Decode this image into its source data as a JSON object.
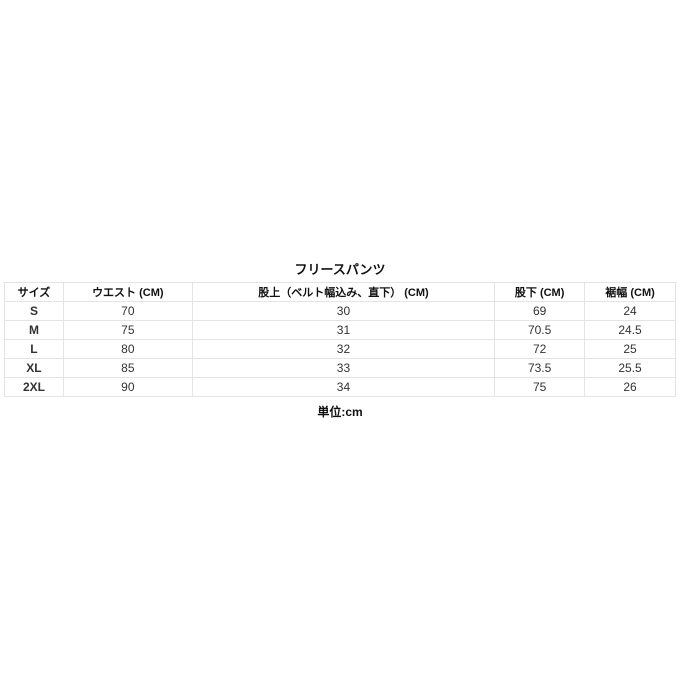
{
  "title": "フリースパンツ",
  "headers": [
    "サイズ",
    "ウエスト (CM)",
    "股上（ベルト幅込み、直下） (CM)",
    "股下 (CM)",
    "裾幅 (CM)"
  ],
  "rows": [
    [
      "S",
      "70",
      "30",
      "69",
      "24"
    ],
    [
      "M",
      "75",
      "31",
      "70.5",
      "24.5"
    ],
    [
      "L",
      "80",
      "32",
      "72",
      "25"
    ],
    [
      "XL",
      "85",
      "33",
      "73.5",
      "25.5"
    ],
    [
      "2XL",
      "90",
      "34",
      "75",
      "26"
    ]
  ],
  "unit_note": "単位:cm"
}
